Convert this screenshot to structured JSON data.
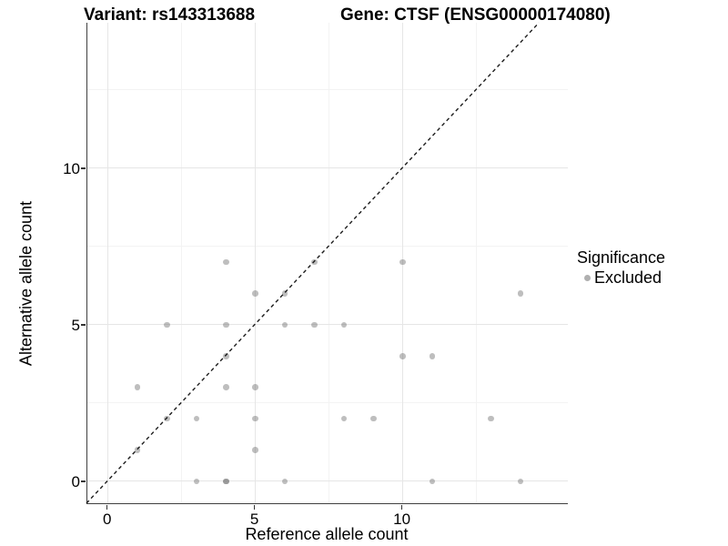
{
  "titles": {
    "variant": "Variant: rs143313688",
    "gene": "Gene: CTSF (ENSG00000174080)"
  },
  "legend": {
    "title": "Significance",
    "items": [
      {
        "label": "Excluded",
        "color": "#b0b0b0"
      }
    ]
  },
  "chart_data": {
    "type": "scatter",
    "xlabel": "Reference allele count",
    "ylabel": "Alternative allele count",
    "xlim": [
      -0.7,
      15.6
    ],
    "ylim": [
      -0.7,
      14.65
    ],
    "x_ticks": [
      0,
      5,
      10
    ],
    "x_tick_labels": [
      "0",
      "5",
      "10"
    ],
    "y_ticks": [
      0,
      5,
      10
    ],
    "y_tick_labels": [
      "0",
      "5",
      "10"
    ],
    "x_minor_ticks": [
      2.5,
      7.5,
      12.5
    ],
    "y_minor_ticks": [
      2.5,
      7.5,
      12.5
    ],
    "grid": true,
    "legend_position": "right",
    "series": [
      {
        "name": "Excluded",
        "color": "#bdbdbd",
        "points": [
          [
            3,
            0
          ],
          [
            4,
            0
          ],
          [
            4,
            0
          ],
          [
            6,
            0
          ],
          [
            11,
            0
          ],
          [
            14,
            0
          ],
          [
            1,
            1
          ],
          [
            5,
            1
          ],
          [
            2,
            2
          ],
          [
            3,
            2
          ],
          [
            5,
            2
          ],
          [
            8,
            2
          ],
          [
            9,
            2
          ],
          [
            13,
            2
          ],
          [
            1,
            3
          ],
          [
            4,
            3
          ],
          [
            5,
            3
          ],
          [
            4,
            4
          ],
          [
            10,
            4
          ],
          [
            11,
            4
          ],
          [
            2,
            5
          ],
          [
            4,
            5
          ],
          [
            6,
            5
          ],
          [
            7,
            5
          ],
          [
            8,
            5
          ],
          [
            5,
            6
          ],
          [
            6,
            6
          ],
          [
            14,
            6
          ],
          [
            4,
            7
          ],
          [
            7,
            7
          ],
          [
            10,
            7
          ]
        ]
      }
    ],
    "identity_line": {
      "slope": 1,
      "intercept": 0,
      "style": "dashed",
      "color": "#1c1c1c"
    },
    "colors": {
      "point": "#bdbdbd",
      "grid_major": "#e6e6e6",
      "grid_minor": "#f3f3f3",
      "axis_line": "#404040",
      "background": "#ffffff"
    }
  }
}
